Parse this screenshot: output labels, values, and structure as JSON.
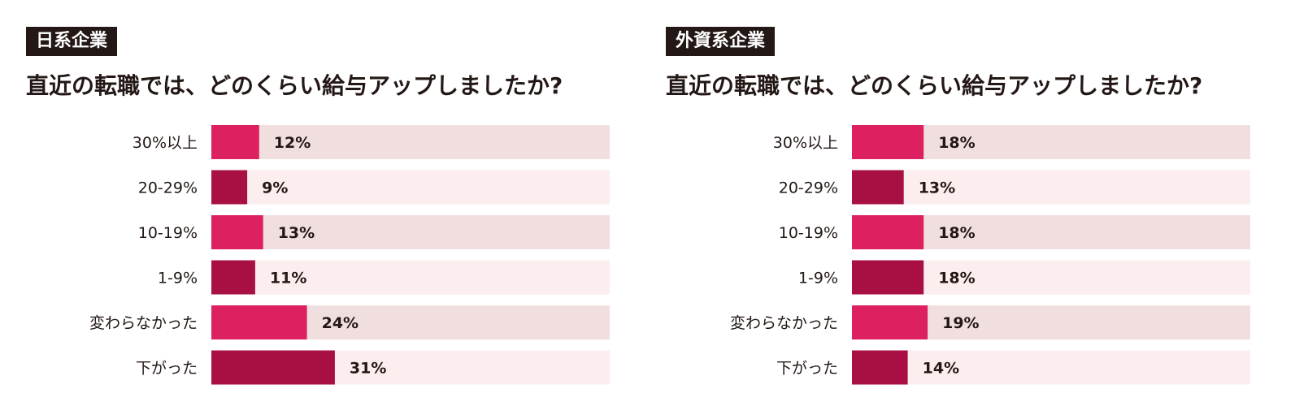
{
  "colors": {
    "bar_light": "#dd2060",
    "bar_dark": "#a80f42",
    "track_dark": "#f1dfe0",
    "track_light": "#fcedee",
    "tag_bg": "#231815",
    "text": "#231815"
  },
  "chart_data": [
    {
      "type": "bar",
      "orientation": "horizontal",
      "tag": "日系企業",
      "title": "直近の転職では、どのくらい給与アップしましたか?",
      "categories": [
        "30%以上",
        "20-29%",
        "10-19%",
        "1-9%",
        "変わらなかった",
        "下がった"
      ],
      "values": [
        12,
        9,
        13,
        11,
        24,
        31
      ],
      "value_labels": [
        "12%",
        "9%",
        "13%",
        "11%",
        "24%",
        "31%"
      ],
      "xlim": [
        0,
        100
      ],
      "unit": "%"
    },
    {
      "type": "bar",
      "orientation": "horizontal",
      "tag": "外資系企業",
      "title": "直近の転職では、どのくらい給与アップしましたか?",
      "categories": [
        "30%以上",
        "20-29%",
        "10-19%",
        "1-9%",
        "変わらなかった",
        "下がった"
      ],
      "values": [
        18,
        13,
        18,
        18,
        19,
        14
      ],
      "value_labels": [
        "18%",
        "13%",
        "18%",
        "18%",
        "19%",
        "14%"
      ],
      "xlim": [
        0,
        100
      ],
      "unit": "%"
    }
  ]
}
